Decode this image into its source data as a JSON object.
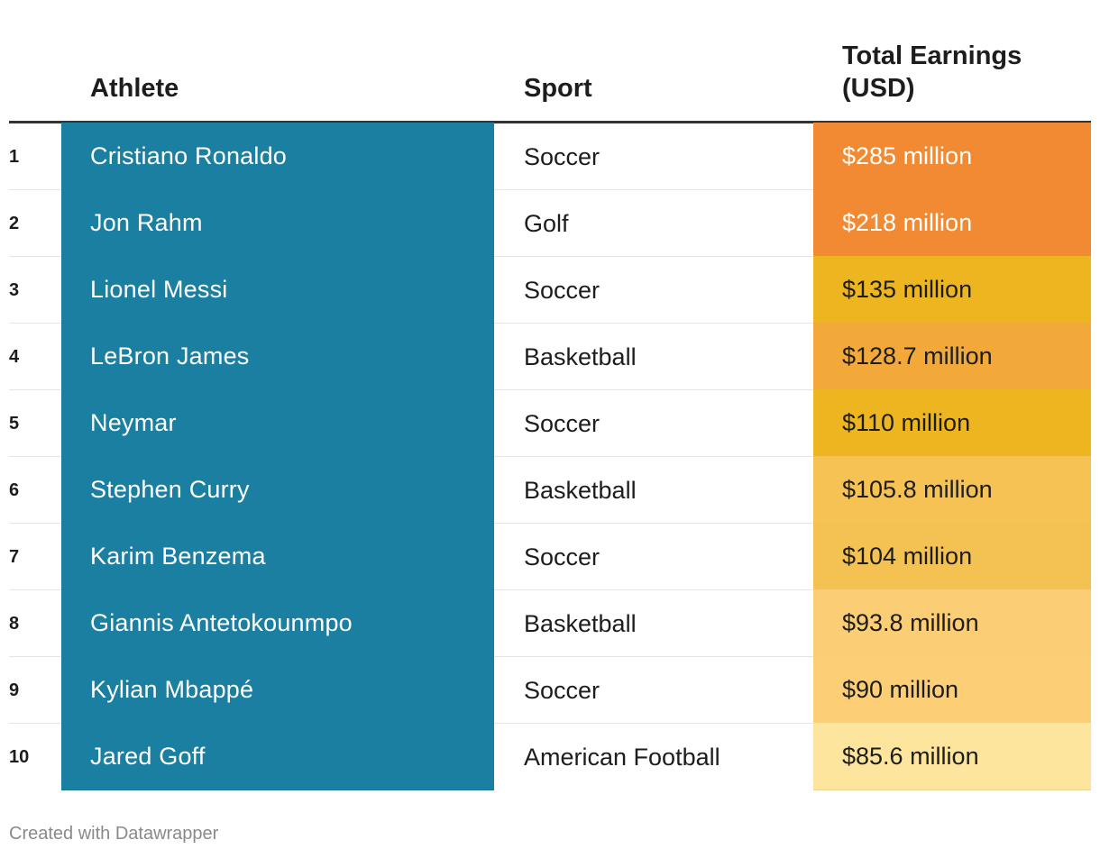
{
  "chart_data": {
    "type": "table",
    "title": "",
    "columns": [
      "",
      "Athlete",
      "Sport",
      "Total Earnings (USD)"
    ],
    "header_earnings_line1": "Total Earnings",
    "header_earnings_line2": "(USD)",
    "rows": [
      {
        "rank": "1",
        "athlete": "Cristiano Ronaldo",
        "sport": "Soccer",
        "earnings": "$285 million",
        "value": 285,
        "color": "#f28a33",
        "text_color": "#ffffff"
      },
      {
        "rank": "2",
        "athlete": "Jon Rahm",
        "sport": "Golf",
        "earnings": "$218 million",
        "value": 218,
        "color": "#f28a33",
        "text_color": "#ffffff"
      },
      {
        "rank": "3",
        "athlete": "Lionel Messi",
        "sport": "Soccer",
        "earnings": "$135 million",
        "value": 135,
        "color": "#edb520",
        "text_color": "#1d1d1d"
      },
      {
        "rank": "4",
        "athlete": "LeBron James",
        "sport": "Basketball",
        "earnings": "$128.7 million",
        "value": 128.7,
        "color": "#f3a83a",
        "text_color": "#1d1d1d"
      },
      {
        "rank": "5",
        "athlete": "Neymar",
        "sport": "Soccer",
        "earnings": "$110 million",
        "value": 110,
        "color": "#edb520",
        "text_color": "#1d1d1d"
      },
      {
        "rank": "6",
        "athlete": "Stephen Curry",
        "sport": "Basketball",
        "earnings": "$105.8 million",
        "value": 105.8,
        "color": "#f6c253",
        "text_color": "#1d1d1d"
      },
      {
        "rank": "7",
        "athlete": "Karim Benzema",
        "sport": "Soccer",
        "earnings": "$104 million",
        "value": 104,
        "color": "#f4c153",
        "text_color": "#1d1d1d"
      },
      {
        "rank": "8",
        "athlete": "Giannis Antetokounmpo",
        "sport": "Basketball",
        "earnings": "$93.8 million",
        "value": 93.8,
        "color": "#fbcd75",
        "text_color": "#1d1d1d"
      },
      {
        "rank": "9",
        "athlete": "Kylian Mbappé",
        "sport": "Soccer",
        "earnings": "$90 million",
        "value": 90,
        "color": "#fcce75",
        "text_color": "#1d1d1d"
      },
      {
        "rank": "10",
        "athlete": "Jared Goff",
        "sport": "American Football",
        "earnings": "$85.6 million",
        "value": 85.6,
        "color": "#fde59e",
        "text_color": "#1d1d1d"
      }
    ]
  },
  "header": {
    "athlete": "Athlete",
    "sport": "Sport",
    "earnings_line1": "Total Earnings",
    "earnings_line2": "(USD)"
  },
  "colors": {
    "athlete_column": "#1b7fa1",
    "header_rule": "#333333"
  },
  "footer": {
    "credit": "Created with Datawrapper"
  }
}
